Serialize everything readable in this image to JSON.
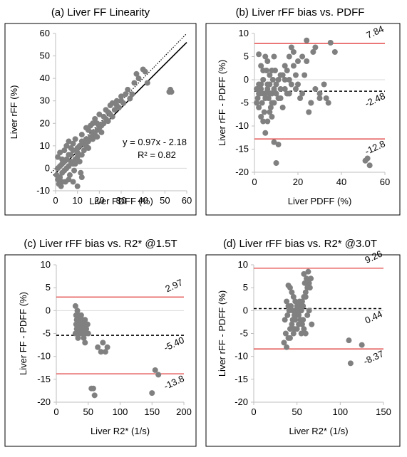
{
  "chart_data": [
    {
      "id": "a",
      "type": "scatter",
      "title": "(a) Liver FF Linearity",
      "xlabel": "Liver PDFF (%)",
      "ylabel": "Liver rFF (%)",
      "xlim": [
        0,
        60
      ],
      "ylim": [
        -10,
        60
      ],
      "xticks": [
        0,
        10,
        20,
        30,
        40,
        50,
        60
      ],
      "yticks": [
        -10,
        0,
        10,
        20,
        30,
        40,
        50,
        60
      ],
      "grid": false,
      "marker_color": "#808080",
      "fit_line": {
        "slope": 0.97,
        "intercept": -2.18,
        "style": "solid",
        "color": "#000000"
      },
      "identity_line": {
        "slope": 1,
        "intercept": 0,
        "style": "dotted",
        "color": "#000000"
      },
      "equation": "y = 0.97x - 2.18",
      "r2": "R² = 0.82",
      "points": [
        [
          0.5,
          -3
        ],
        [
          1,
          -5
        ],
        [
          1.5,
          -7
        ],
        [
          2,
          -4
        ],
        [
          2.5,
          -8
        ],
        [
          3,
          -2
        ],
        [
          1,
          0
        ],
        [
          2,
          1
        ],
        [
          3,
          2
        ],
        [
          4,
          -1
        ],
        [
          4.5,
          -6
        ],
        [
          5,
          0
        ],
        [
          6,
          1
        ],
        [
          6.5,
          -3
        ],
        [
          7,
          3
        ],
        [
          8,
          2
        ],
        [
          8.5,
          -1
        ],
        [
          9,
          4
        ],
        [
          10,
          5
        ],
        [
          11,
          3
        ],
        [
          11.5,
          -2
        ],
        [
          12,
          6
        ],
        [
          13,
          8
        ],
        [
          14,
          10
        ],
        [
          15,
          12
        ],
        [
          16,
          14
        ],
        [
          17,
          13
        ],
        [
          18,
          15
        ],
        [
          19,
          17
        ],
        [
          20,
          18
        ],
        [
          21,
          16
        ],
        [
          22,
          20
        ],
        [
          23,
          22
        ],
        [
          24,
          21
        ],
        [
          25,
          24
        ],
        [
          26,
          23
        ],
        [
          27,
          26
        ],
        [
          28,
          28
        ],
        [
          29,
          27
        ],
        [
          30,
          30
        ],
        [
          31,
          29
        ],
        [
          32,
          33
        ],
        [
          34,
          31
        ],
        [
          36,
          38
        ],
        [
          37,
          42
        ],
        [
          38,
          40
        ],
        [
          40,
          44
        ],
        [
          41,
          43
        ],
        [
          42,
          38
        ],
        [
          52,
          34
        ],
        [
          52.5,
          35
        ],
        [
          53,
          34
        ],
        [
          1,
          5
        ],
        [
          2,
          7
        ],
        [
          3,
          4
        ],
        [
          4,
          8
        ],
        [
          5,
          10
        ],
        [
          6,
          12
        ],
        [
          7,
          9
        ],
        [
          8,
          11
        ],
        [
          9,
          13
        ],
        [
          10,
          7
        ],
        [
          12,
          15
        ],
        [
          14,
          18
        ],
        [
          16,
          19
        ],
        [
          18,
          22
        ],
        [
          20,
          24
        ],
        [
          22,
          23
        ],
        [
          6,
          -5
        ],
        [
          8,
          -6
        ],
        [
          10,
          -8
        ],
        [
          12,
          -4
        ],
        [
          5,
          4
        ],
        [
          7,
          6
        ],
        [
          9,
          2
        ],
        [
          11,
          10
        ],
        [
          13,
          11
        ],
        [
          15,
          9
        ],
        [
          17,
          16
        ],
        [
          19,
          14
        ],
        [
          24,
          25
        ],
        [
          26,
          29
        ],
        [
          28,
          30
        ],
        [
          30,
          32
        ],
        [
          33,
          35
        ],
        [
          35,
          33
        ],
        [
          3,
          -6
        ],
        [
          4,
          3
        ],
        [
          6,
          6
        ],
        [
          8,
          8
        ],
        [
          10,
          9
        ],
        [
          12,
          12
        ],
        [
          14,
          13
        ],
        [
          15,
          17
        ],
        [
          17,
          20
        ],
        [
          19,
          20
        ],
        [
          21,
          19
        ],
        [
          23,
          26
        ],
        [
          25,
          28
        ]
      ]
    },
    {
      "id": "b",
      "type": "scatter",
      "title": "(b) Liver rFF bias vs. PDFF",
      "xlabel": "Liver PDFF (%)",
      "ylabel": "Liver rFF - PDFF (%)",
      "xlim": [
        0,
        60
      ],
      "ylim": [
        -20,
        10
      ],
      "xticks": [
        0,
        20,
        40,
        60
      ],
      "yticks": [
        -20,
        -15,
        -10,
        -5,
        0,
        5,
        10
      ],
      "grid": false,
      "marker_color": "#808080",
      "reference_lines": [
        {
          "value": 7.84,
          "label": "7.84",
          "style": "solid",
          "color": "#e23d3d"
        },
        {
          "value": -2.48,
          "label": "-2.48",
          "style": "dashed",
          "color": "#000000"
        },
        {
          "value": -12.8,
          "label": "-12.8",
          "style": "solid",
          "color": "#e23d3d"
        }
      ],
      "points": [
        [
          1,
          -2
        ],
        [
          1.5,
          -4
        ],
        [
          2,
          -6
        ],
        [
          2.5,
          -3
        ],
        [
          3,
          -1
        ],
        [
          3.5,
          -5
        ],
        [
          4,
          0
        ],
        [
          4.5,
          -7
        ],
        [
          5,
          -3
        ],
        [
          5.5,
          2
        ],
        [
          6,
          -2
        ],
        [
          6.5,
          -4
        ],
        [
          7,
          1
        ],
        [
          7.5,
          -6
        ],
        [
          8,
          -3
        ],
        [
          8.5,
          0
        ],
        [
          9,
          -5
        ],
        [
          9.5,
          2
        ],
        [
          10,
          -1
        ],
        [
          11,
          -4
        ],
        [
          12,
          -2
        ],
        [
          13,
          1
        ],
        [
          14,
          3
        ],
        [
          15,
          -3
        ],
        [
          16,
          5
        ],
        [
          17,
          -1
        ],
        [
          18,
          6
        ],
        [
          19,
          -2
        ],
        [
          20,
          4
        ],
        [
          21,
          -4
        ],
        [
          22,
          5
        ],
        [
          23,
          1
        ],
        [
          24,
          8.5
        ],
        [
          25,
          -7
        ],
        [
          26,
          -5
        ],
        [
          27,
          6
        ],
        [
          28,
          -2
        ],
        [
          30,
          -3
        ],
        [
          32,
          -1
        ],
        [
          33,
          -4
        ],
        [
          34,
          -5
        ],
        [
          35,
          8
        ],
        [
          37,
          6
        ],
        [
          2,
          5.5
        ],
        [
          4,
          -9
        ],
        [
          5,
          -11.5
        ],
        [
          9,
          -13.5
        ],
        [
          10,
          -18
        ],
        [
          11,
          -14
        ],
        [
          3,
          -8
        ],
        [
          6,
          -9
        ],
        [
          7,
          -7
        ],
        [
          8,
          -8
        ],
        [
          51,
          -17.5
        ],
        [
          52,
          -17
        ],
        [
          53,
          -18.5
        ],
        [
          2,
          -3
        ],
        [
          3,
          3
        ],
        [
          4,
          2
        ],
        [
          5,
          5
        ],
        [
          6,
          4
        ],
        [
          7,
          -1
        ],
        [
          8,
          2
        ],
        [
          9,
          5
        ],
        [
          10,
          -3
        ],
        [
          12,
          -4
        ],
        [
          13,
          -6
        ],
        [
          14,
          0
        ],
        [
          15,
          2
        ],
        [
          16,
          -3
        ],
        [
          17,
          7
        ],
        [
          18,
          3
        ],
        [
          20,
          -1
        ],
        [
          22,
          -3
        ],
        [
          24,
          4
        ],
        [
          26,
          -5
        ],
        [
          28,
          7
        ],
        [
          30,
          -4
        ],
        [
          1,
          -5
        ],
        [
          2,
          -1
        ],
        [
          3,
          -2
        ],
        [
          4,
          -3
        ],
        [
          5,
          -4
        ],
        [
          6,
          -1
        ],
        [
          7,
          -3
        ],
        [
          8,
          -5
        ],
        [
          9,
          -2
        ],
        [
          11,
          0
        ],
        [
          12,
          1
        ],
        [
          14,
          -2
        ],
        [
          16,
          0
        ],
        [
          19,
          1
        ]
      ]
    },
    {
      "id": "c",
      "type": "scatter",
      "title": "(c) Liver rFF bias vs. R2* @1.5T",
      "xlabel": "Liver R2* (1/s)",
      "ylabel": "Liver FF - PDFF (%)",
      "xlim": [
        0,
        200
      ],
      "ylim": [
        -20,
        10
      ],
      "xticks": [
        0,
        50,
        100,
        150,
        200
      ],
      "yticks": [
        -20,
        -15,
        -10,
        -5,
        0,
        5,
        10
      ],
      "grid": false,
      "marker_color": "#808080",
      "reference_lines": [
        {
          "value": 2.97,
          "label": "2.97",
          "style": "solid",
          "color": "#e23d3d"
        },
        {
          "value": -5.4,
          "label": "-5.40",
          "style": "dashed",
          "color": "#000000"
        },
        {
          "value": -13.8,
          "label": "-13.8",
          "style": "solid",
          "color": "#e23d3d"
        }
      ],
      "points": [
        [
          30,
          1
        ],
        [
          31,
          -1
        ],
        [
          32,
          -2
        ],
        [
          33,
          -3
        ],
        [
          34,
          -4
        ],
        [
          35,
          -5
        ],
        [
          36,
          -2
        ],
        [
          37,
          -3
        ],
        [
          38,
          -4
        ],
        [
          39,
          -5
        ],
        [
          40,
          -3
        ],
        [
          41,
          -2
        ],
        [
          42,
          -4
        ],
        [
          43,
          -3
        ],
        [
          44,
          -5
        ],
        [
          45,
          -2
        ],
        [
          46,
          -4
        ],
        [
          30,
          -5
        ],
        [
          32,
          -4
        ],
        [
          34,
          -6
        ],
        [
          36,
          -5
        ],
        [
          38,
          -3
        ],
        [
          40,
          -4
        ],
        [
          42,
          -5
        ],
        [
          44,
          -3
        ],
        [
          46,
          -5
        ],
        [
          48,
          -3
        ],
        [
          33,
          0
        ],
        [
          35,
          -1
        ],
        [
          37,
          -2
        ],
        [
          39,
          -1
        ],
        [
          41,
          -4
        ],
        [
          43,
          -6
        ],
        [
          45,
          -7
        ],
        [
          47,
          -4
        ],
        [
          49,
          -3
        ],
        [
          50,
          -5
        ],
        [
          65,
          -8
        ],
        [
          70,
          -9
        ],
        [
          73,
          -7
        ],
        [
          77,
          -9
        ],
        [
          80,
          -8
        ],
        [
          55,
          -17
        ],
        [
          58,
          -17
        ],
        [
          60,
          -18.5
        ],
        [
          150,
          -18
        ],
        [
          155,
          -13
        ],
        [
          160,
          -14
        ],
        [
          31,
          -3
        ],
        [
          33,
          -5
        ],
        [
          35,
          -3
        ],
        [
          37,
          -4
        ],
        [
          39,
          -3
        ],
        [
          41,
          -5
        ],
        [
          43,
          -4
        ]
      ]
    },
    {
      "id": "d",
      "type": "scatter",
      "title": "(d) Liver rFF bias vs. R2* @3.0T",
      "xlabel": "Liver R2* (1/s)",
      "ylabel": "Liver rFF - PDFF (%)",
      "xlim": [
        0,
        150
      ],
      "ylim": [
        -20,
        10
      ],
      "xticks": [
        0,
        50,
        100,
        150
      ],
      "yticks": [
        -20,
        -15,
        -10,
        -5,
        0,
        5,
        10
      ],
      "grid": false,
      "marker_color": "#808080",
      "reference_lines": [
        {
          "value": 9.26,
          "label": "9.26",
          "style": "solid",
          "color": "#e23d3d"
        },
        {
          "value": 0.44,
          "label": "0.44",
          "style": "dashed",
          "color": "#000000"
        },
        {
          "value": -8.37,
          "label": "-8.37",
          "style": "solid",
          "color": "#e23d3d"
        }
      ],
      "points": [
        [
          35,
          -7
        ],
        [
          38,
          -8
        ],
        [
          40,
          -6
        ],
        [
          42,
          -4
        ],
        [
          44,
          -3
        ],
        [
          46,
          -5
        ],
        [
          48,
          -2
        ],
        [
          50,
          -1
        ],
        [
          52,
          0
        ],
        [
          54,
          1
        ],
        [
          56,
          2
        ],
        [
          58,
          3
        ],
        [
          60,
          4
        ],
        [
          62,
          5
        ],
        [
          64,
          6
        ],
        [
          66,
          7
        ],
        [
          38,
          2
        ],
        [
          40,
          5.5
        ],
        [
          42,
          5
        ],
        [
          44,
          4
        ],
        [
          46,
          3
        ],
        [
          48,
          2
        ],
        [
          50,
          1
        ],
        [
          52,
          -1
        ],
        [
          54,
          -2
        ],
        [
          56,
          -3
        ],
        [
          58,
          -4
        ],
        [
          60,
          -5
        ],
        [
          62,
          -1
        ],
        [
          64,
          0
        ],
        [
          36,
          -2
        ],
        [
          39,
          -1
        ],
        [
          41,
          0
        ],
        [
          43,
          1
        ],
        [
          45,
          0
        ],
        [
          47,
          -1
        ],
        [
          49,
          0
        ],
        [
          51,
          1
        ],
        [
          53,
          2
        ],
        [
          55,
          0
        ],
        [
          57,
          1
        ],
        [
          59,
          6
        ],
        [
          61,
          7
        ],
        [
          63,
          8.5
        ],
        [
          65,
          5
        ],
        [
          67,
          -3
        ],
        [
          37,
          -5
        ],
        [
          42,
          -6
        ],
        [
          47,
          -4
        ],
        [
          52,
          -3
        ],
        [
          57,
          -2
        ],
        [
          110,
          -6.5
        ],
        [
          112,
          -11.5
        ],
        [
          125,
          -7.5
        ],
        [
          40,
          1
        ],
        [
          45,
          -2
        ],
        [
          50,
          -4
        ],
        [
          55,
          -5
        ],
        [
          60,
          3
        ],
        [
          58,
          8
        ]
      ]
    }
  ]
}
